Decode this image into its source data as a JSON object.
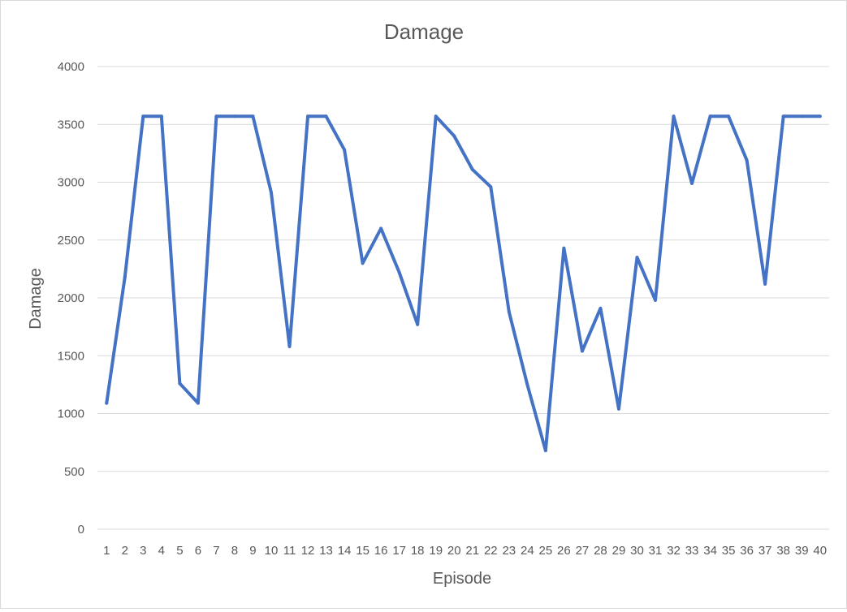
{
  "chart_data": {
    "type": "line",
    "title": "Damage",
    "xlabel": "Episode",
    "ylabel": "Damage",
    "ylim": [
      0,
      4000
    ],
    "y_ticks": [
      0,
      500,
      1000,
      1500,
      2000,
      2500,
      3000,
      3500,
      4000
    ],
    "grid": true,
    "legend": "none",
    "categories": [
      "1",
      "2",
      "3",
      "4",
      "5",
      "6",
      "7",
      "8",
      "9",
      "10",
      "11",
      "12",
      "13",
      "14",
      "15",
      "16",
      "17",
      "18",
      "19",
      "20",
      "21",
      "22",
      "23",
      "24",
      "25",
      "26",
      "27",
      "28",
      "29",
      "30",
      "31",
      "32",
      "33",
      "34",
      "35",
      "36",
      "37",
      "38",
      "39",
      "40"
    ],
    "series": [
      {
        "color": "#4472c4",
        "values": [
          1090,
          2180,
          3570,
          3570,
          1260,
          1090,
          3570,
          3570,
          3570,
          2910,
          1580,
          3570,
          3570,
          3280,
          2300,
          2600,
          2220,
          1770,
          3570,
          3400,
          3110,
          2960,
          1880,
          1250,
          680,
          2430,
          1540,
          1910,
          1040,
          2350,
          1980,
          3570,
          2990,
          3570,
          3570,
          3190,
          2120,
          3570,
          3570,
          3570
        ]
      }
    ]
  }
}
